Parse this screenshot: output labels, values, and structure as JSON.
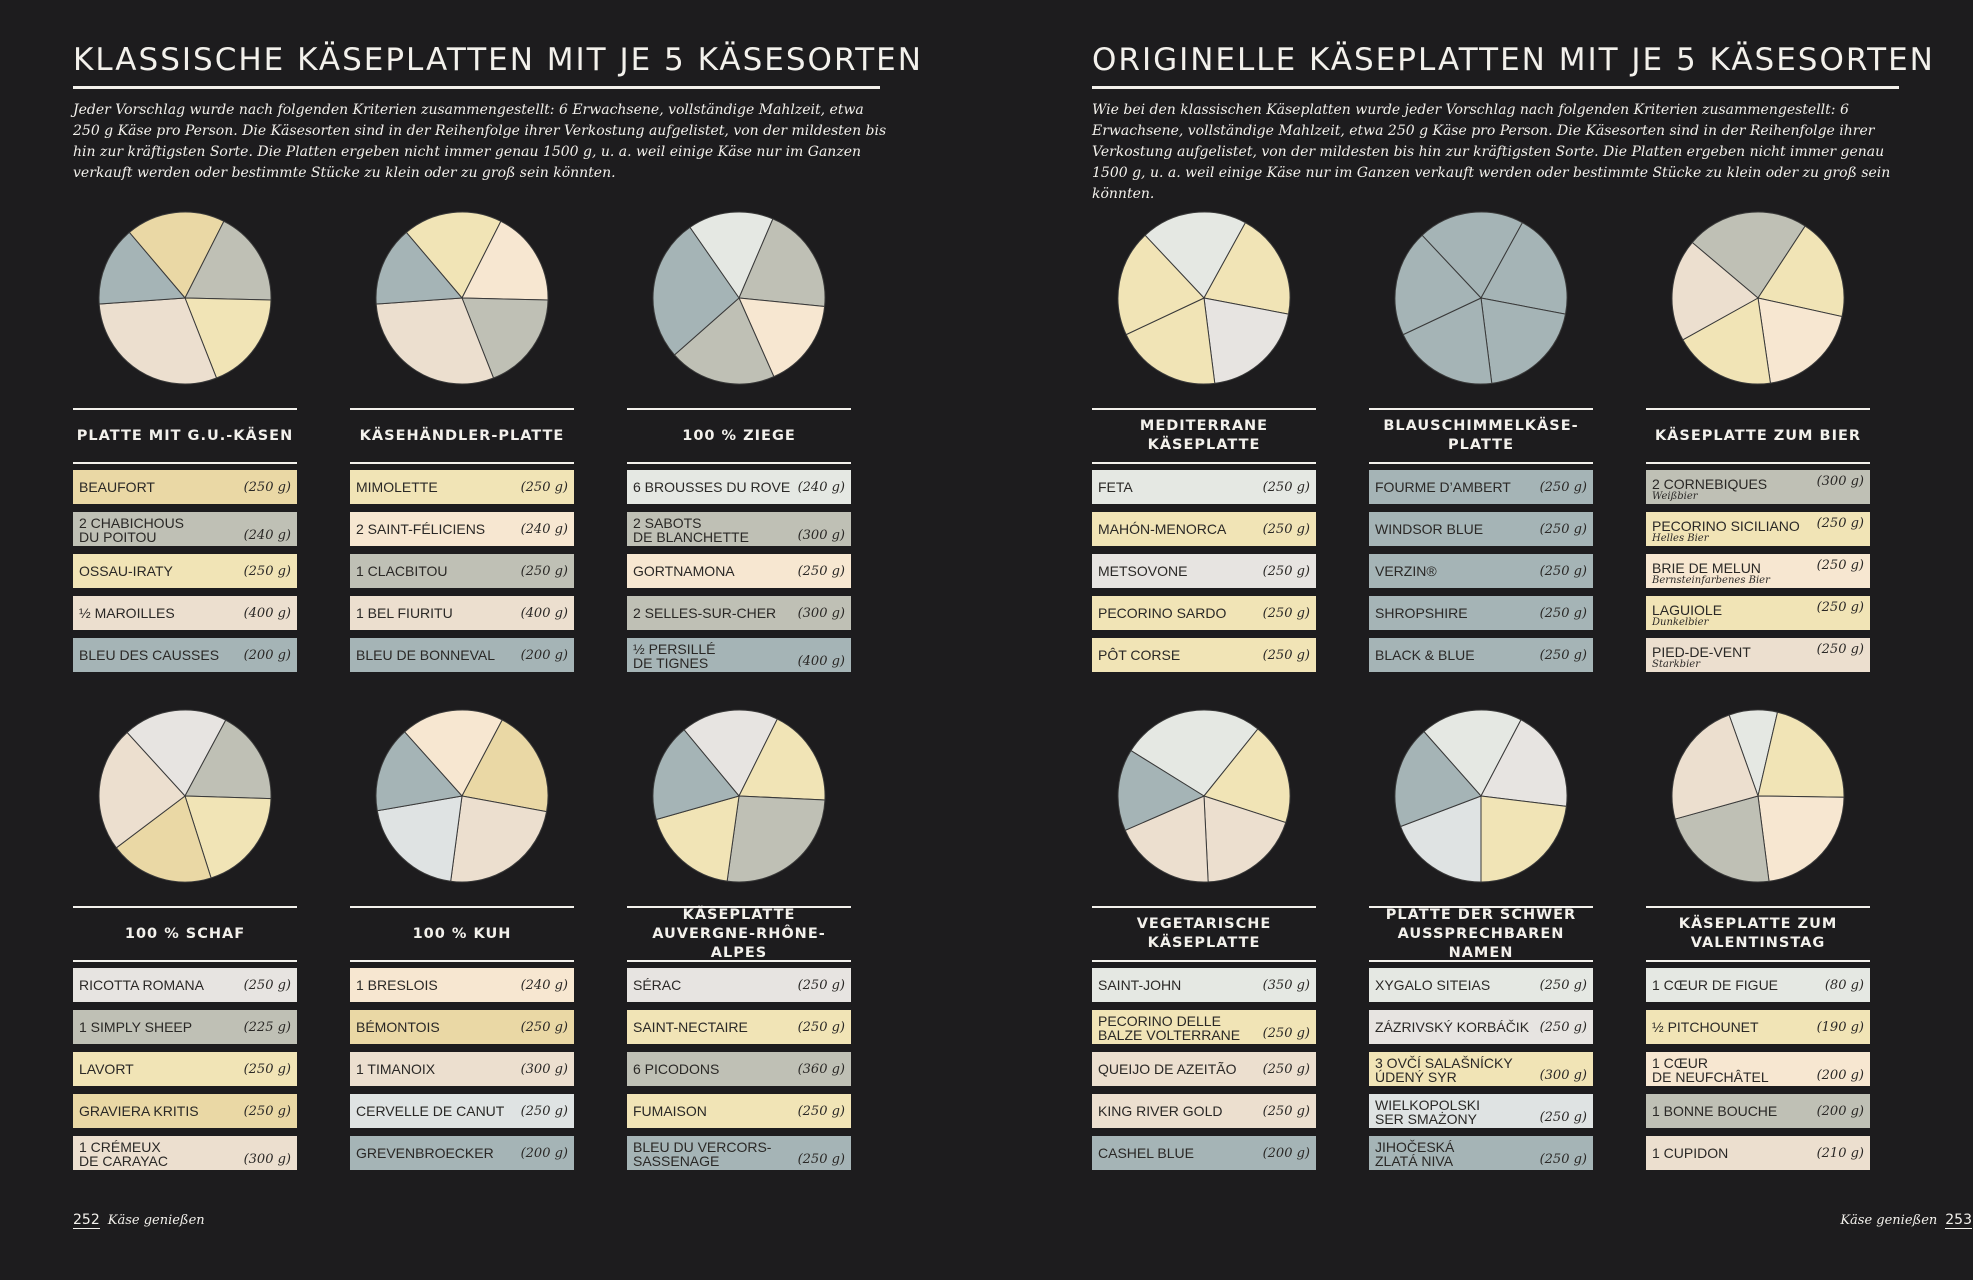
{
  "colors": {
    "background": "#1d1c1e",
    "text": "#f3f1ec",
    "yellow": "#f1e4b6",
    "amber": "#ead8a5",
    "sage": "#bfc0b5",
    "blue": "#a5b4b6",
    "cream": "#f7e7d1",
    "peach": "#ecdfcf",
    "mint": "#e5e8e3",
    "gray": "#e7e4e1",
    "pale": "#dfe3e3"
  },
  "left": {
    "title": "KLASSISCHE KÄSEPLATTEN MIT JE 5 KÄSESORTEN",
    "intro": "Jeder Vorschlag wurde nach folgenden Kriterien zusammengestellt: 6 Erwachsene, vollständige Mahlzeit, etwa 250 g Käse pro Person. Die Käsesorten sind in der Reihenfolge ihrer Verkostung aufgelistet, von der mildesten bis hin zur kräftigsten Sorte. Die Platten ergeben nicht immer genau 1500 g, u. a. weil einige Käse nur im Ganzen verkauft werden oder bestimmte Stücke zu klein oder zu groß sein könnten.",
    "page_number": "252",
    "footer_text": "Käse genießen",
    "platters": [
      {
        "title": [
          "PLATTE MIT G.U.-KÄSEN"
        ],
        "cheeses": [
          {
            "name": [
              "BEAUFORT"
            ],
            "weight": "(250 g)",
            "color": "amber",
            "value": 250
          },
          {
            "name": [
              "2 CHABICHOUS",
              "DU POITOU"
            ],
            "weight": "(240 g)",
            "color": "sage",
            "value": 240
          },
          {
            "name": [
              "OSSAU-IRATY"
            ],
            "weight": "(250 g)",
            "color": "yellow",
            "value": 250
          },
          {
            "name": [
              "½ MAROILLES"
            ],
            "weight": "(400 g)",
            "color": "peach",
            "value": 400
          },
          {
            "name": [
              "BLEU DES CAUSSES"
            ],
            "weight": "(200 g)",
            "color": "blue",
            "value": 200
          }
        ]
      },
      {
        "title": [
          "KÄSEHÄNDLER-PLATTE"
        ],
        "cheeses": [
          {
            "name": [
              "MIMOLETTE"
            ],
            "weight": "(250 g)",
            "color": "yellow",
            "value": 250
          },
          {
            "name": [
              "2 SAINT-FÉLICIENS"
            ],
            "weight": "(240 g)",
            "color": "cream",
            "value": 240
          },
          {
            "name": [
              "1 CLACBITOU"
            ],
            "weight": "(250 g)",
            "color": "sage",
            "value": 250
          },
          {
            "name": [
              "1 BEL FIURITU"
            ],
            "weight": "(400 g)",
            "color": "peach",
            "value": 400
          },
          {
            "name": [
              "BLEU DE BONNEVAL"
            ],
            "weight": "(200 g)",
            "color": "blue",
            "value": 200
          }
        ]
      },
      {
        "title": [
          "100 % ZIEGE"
        ],
        "cheeses": [
          {
            "name": [
              "6 BROUSSES DU ROVE"
            ],
            "weight": "(240 g)",
            "color": "mint",
            "value": 240
          },
          {
            "name": [
              "2 SABOTS",
              "DE BLANCHETTE"
            ],
            "weight": "(300 g)",
            "color": "sage",
            "value": 300
          },
          {
            "name": [
              "GORTNAMONA"
            ],
            "weight": "(250 g)",
            "color": "cream",
            "value": 250
          },
          {
            "name": [
              "2 SELLES-SUR-CHER"
            ],
            "weight": "(300 g)",
            "color": "sage",
            "value": 300
          },
          {
            "name": [
              "½ PERSILLÉ",
              "DE TIGNES"
            ],
            "weight": "(400 g)",
            "color": "blue",
            "value": 400
          }
        ]
      },
      {
        "title": [
          "100 % SCHAF"
        ],
        "cheeses": [
          {
            "name": [
              "RICOTTA ROMANA"
            ],
            "weight": "(250 g)",
            "color": "gray",
            "value": 250
          },
          {
            "name": [
              "1 SIMPLY SHEEP"
            ],
            "weight": "(225 g)",
            "color": "sage",
            "value": 225
          },
          {
            "name": [
              "LAVORT"
            ],
            "weight": "(250 g)",
            "color": "yellow",
            "value": 250
          },
          {
            "name": [
              "GRAVIERA KRITIS"
            ],
            "weight": "(250 g)",
            "color": "amber",
            "value": 250
          },
          {
            "name": [
              "1 CRÉMEUX",
              "DE CARAYAC"
            ],
            "weight": "(300 g)",
            "color": "peach",
            "value": 300
          }
        ]
      },
      {
        "title": [
          "100 % KUH"
        ],
        "cheeses": [
          {
            "name": [
              "1 BRESLOIS"
            ],
            "weight": "(240 g)",
            "color": "cream",
            "value": 240
          },
          {
            "name": [
              "BÉMONTOIS"
            ],
            "weight": "(250 g)",
            "color": "amber",
            "value": 250
          },
          {
            "name": [
              "1 TIMANOIX"
            ],
            "weight": "(300 g)",
            "color": "peach",
            "value": 300
          },
          {
            "name": [
              "CERVELLE DE CANUT"
            ],
            "weight": "(250 g)",
            "color": "pale",
            "value": 250
          },
          {
            "name": [
              "GREVENBROECKER"
            ],
            "weight": "(200 g)",
            "color": "blue",
            "value": 200
          }
        ]
      },
      {
        "title": [
          "KÄSEPLATTE",
          "AUVERGNE-RHÔNE-ALPES"
        ],
        "cheeses": [
          {
            "name": [
              "SÉRAC"
            ],
            "weight": "(250 g)",
            "color": "gray",
            "value": 250
          },
          {
            "name": [
              "SAINT-NECTAIRE"
            ],
            "weight": "(250 g)",
            "color": "yellow",
            "value": 250
          },
          {
            "name": [
              "6 PICODONS"
            ],
            "weight": "(360 g)",
            "color": "sage",
            "value": 360
          },
          {
            "name": [
              "FUMAISON"
            ],
            "weight": "(250 g)",
            "color": "yellow",
            "value": 250
          },
          {
            "name": [
              "BLEU DU VERCORS-",
              "SASSENAGE"
            ],
            "weight": "(250 g)",
            "color": "blue",
            "value": 250
          }
        ]
      }
    ]
  },
  "right": {
    "title": "ORIGINELLE KÄSEPLATTEN MIT JE 5 KÄSESORTEN",
    "intro": "Wie bei den klassischen Käseplatten wurde jeder Vorschlag nach folgenden Kriterien zusammengestellt: 6 Erwachsene, vollständige Mahlzeit, etwa 250 g Käse pro Person. Die Käsesorten sind in der Reihenfolge ihrer Verkostung aufgelistet, von der mildesten bis hin zur kräftigsten Sorte. Die Platten ergeben nicht immer genau 1500 g, u. a. weil einige Käse nur im Ganzen verkauft werden oder bestimmte Stücke zu klein oder zu groß sein könnten.",
    "page_number": "253",
    "footer_text": "Käse genießen",
    "platters": [
      {
        "title": [
          "MEDITERRANE",
          "KÄSEPLATTE"
        ],
        "cheeses": [
          {
            "name": [
              "FETA"
            ],
            "weight": "(250 g)",
            "color": "mint",
            "value": 250
          },
          {
            "name": [
              "MAHÓN-MENORCA"
            ],
            "weight": "(250 g)",
            "color": "yellow",
            "value": 250
          },
          {
            "name": [
              "METSOVONE"
            ],
            "weight": "(250 g)",
            "color": "gray",
            "value": 250
          },
          {
            "name": [
              "PECORINO SARDO"
            ],
            "weight": "(250 g)",
            "color": "yellow",
            "value": 250
          },
          {
            "name": [
              "PÔT CORSE"
            ],
            "weight": "(250 g)",
            "color": "yellow",
            "value": 250
          }
        ]
      },
      {
        "title": [
          "BLAUSCHIMMELKÄSE-",
          "PLATTE"
        ],
        "cheeses": [
          {
            "name": [
              "FOURME D’AMBERT"
            ],
            "weight": "(250 g)",
            "color": "blue",
            "value": 250
          },
          {
            "name": [
              "WINDSOR BLUE"
            ],
            "weight": "(250 g)",
            "color": "blue",
            "value": 250
          },
          {
            "name": [
              "VERZIN®"
            ],
            "weight": "(250 g)",
            "color": "blue",
            "value": 250
          },
          {
            "name": [
              "SHROPSHIRE"
            ],
            "weight": "(250 g)",
            "color": "blue",
            "value": 250
          },
          {
            "name": [
              "BLACK & BLUE"
            ],
            "weight": "(250 g)",
            "color": "blue",
            "value": 250
          }
        ]
      },
      {
        "title": [
          "KÄSEPLATTE ZUM BIER"
        ],
        "cheeses": [
          {
            "name": [
              "2 CORNEBIQUES"
            ],
            "sub": "Weißbier",
            "weight": "(300 g)",
            "color": "sage",
            "value": 300
          },
          {
            "name": [
              "PECORINO SICILIANO"
            ],
            "sub": "Helles Bier",
            "weight": "(250 g)",
            "color": "yellow",
            "value": 250
          },
          {
            "name": [
              "BRIE DE MELUN"
            ],
            "sub": "Bernsteinfarbenes Bier",
            "weight": "(250 g)",
            "color": "cream",
            "value": 250
          },
          {
            "name": [
              "LAGUIOLE"
            ],
            "sub": "Dunkelbier",
            "weight": "(250 g)",
            "color": "yellow",
            "value": 250
          },
          {
            "name": [
              "PIED-DE-VENT"
            ],
            "sub": "Starkbier",
            "weight": "(250 g)",
            "color": "peach",
            "value": 250
          }
        ]
      },
      {
        "title": [
          "VEGETARISCHE",
          "KÄSEPLATTE"
        ],
        "cheeses": [
          {
            "name": [
              "SAINT-JOHN"
            ],
            "weight": "(350 g)",
            "color": "mint",
            "value": 350
          },
          {
            "name": [
              "PECORINO DELLE",
              "BALZE VOLTERRANE"
            ],
            "weight": "(250 g)",
            "color": "yellow",
            "value": 250
          },
          {
            "name": [
              "QUEIJO DE AZEITÃO"
            ],
            "weight": "(250 g)",
            "color": "peach",
            "value": 250
          },
          {
            "name": [
              "KING RIVER GOLD"
            ],
            "weight": "(250 g)",
            "color": "peach",
            "value": 250
          },
          {
            "name": [
              "CASHEL BLUE"
            ],
            "weight": "(200 g)",
            "color": "blue",
            "value": 200
          }
        ]
      },
      {
        "title": [
          "PLATTE DER SCHWER",
          "AUSSPRECHBAREN NAMEN"
        ],
        "cheeses": [
          {
            "name": [
              "XYGALO SITEIAS"
            ],
            "weight": "(250 g)",
            "color": "mint",
            "value": 250
          },
          {
            "name": [
              "ZÁZRIVSKÝ KORBÁČIK"
            ],
            "weight": "(250 g)",
            "color": "gray",
            "value": 250
          },
          {
            "name": [
              "3 OVČÍ SALAŠNÍCKY",
              "ÚDENÝ SYR"
            ],
            "weight": "(300 g)",
            "color": "yellow",
            "value": 300
          },
          {
            "name": [
              "WIELKOPOLSKI",
              "SER SMAŻONY"
            ],
            "weight": "(250 g)",
            "color": "pale",
            "value": 250
          },
          {
            "name": [
              "JIHOČESKÁ",
              "ZLATÁ NIVA"
            ],
            "weight": "(250 g)",
            "color": "blue",
            "value": 250
          }
        ]
      },
      {
        "title": [
          "KÄSEPLATTE ZUM",
          "VALENTINSTAG"
        ],
        "cheeses": [
          {
            "name": [
              "1 CŒUR DE FIGUE"
            ],
            "weight": "(80 g)",
            "color": "mint",
            "value": 80
          },
          {
            "name": [
              "½ PITCHOUNET"
            ],
            "weight": "(190 g)",
            "color": "yellow",
            "value": 190
          },
          {
            "name": [
              "1 CŒUR",
              "DE NEUFCHÂTEL"
            ],
            "weight": "(200 g)",
            "color": "cream",
            "value": 200
          },
          {
            "name": [
              "1 BONNE BOUCHE"
            ],
            "weight": "(200 g)",
            "color": "sage",
            "value": 200
          },
          {
            "name": [
              "1 CUPIDON"
            ],
            "weight": "(210 g)",
            "color": "peach",
            "value": 210
          }
        ]
      }
    ]
  }
}
